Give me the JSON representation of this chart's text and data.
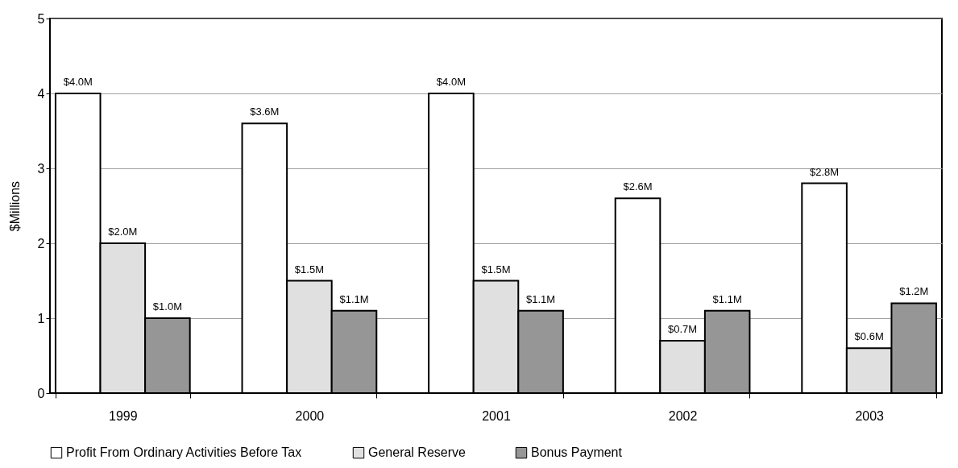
{
  "chart_data": {
    "type": "bar",
    "ylabel": "$Millions",
    "categories": [
      "1999",
      "2000",
      "2001",
      "2002",
      "2003"
    ],
    "series": [
      {
        "name": "Profit From Ordinary Activities Before Tax",
        "color": "#ffffff",
        "values": [
          4.0,
          3.6,
          4.0,
          2.6,
          2.8
        ],
        "value_labels": [
          "$4.0M",
          "$3.6M",
          "$4.0M",
          "$2.6M",
          "$2.8M"
        ]
      },
      {
        "name": "General Reserve",
        "color": "#e0e0e0",
        "values": [
          2.0,
          1.5,
          1.5,
          0.7,
          0.6
        ],
        "value_labels": [
          "$2.0M",
          "$1.5M",
          "$1.5M",
          "$0.7M",
          "$0.6M"
        ]
      },
      {
        "name": "Bonus Payment",
        "color": "#969696",
        "values": [
          1.0,
          1.1,
          1.1,
          1.1,
          1.2
        ],
        "value_labels": [
          "$1.0M",
          "$1.1M",
          "$1.1M",
          "$1.1M",
          "$1.2M"
        ]
      }
    ],
    "ylim": [
      0,
      5
    ],
    "yticks": [
      0,
      1,
      2,
      3,
      4,
      5
    ],
    "grid": "y",
    "legend": "bottom"
  }
}
